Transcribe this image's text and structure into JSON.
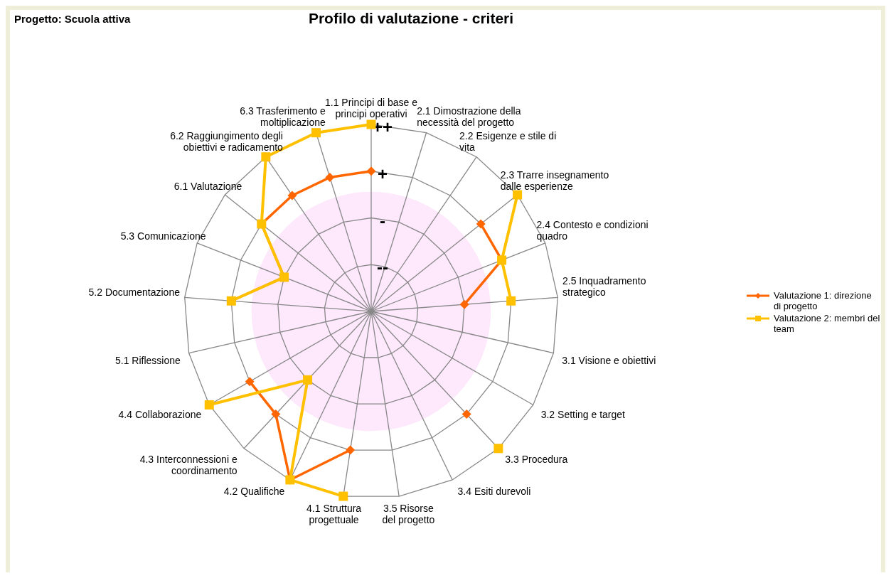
{
  "chart_data": {
    "type": "radar",
    "title": "Profilo di valutazione - criteri",
    "annotations": [
      "Progetto: Scuola attiva"
    ],
    "categories": [
      "1.1 Principi di base e principi operativi",
      "2.1 Dimostrazione della necessità del progetto",
      "2.2 Esigenze e stile di vita",
      "2.3 Trarre insegnamento dalle esperienze",
      "2.4 Contesto e condizioni quadro",
      "2.5 Inquadramento strategico",
      "3.1 Visione e obiettivi",
      "3.2 Setting e target",
      "3.3 Procedura",
      "3.4 Esiti durevoli",
      "3.5 Risorse del progetto",
      "4.1 Struttura progettuale",
      "4.2 Qualifiche",
      "4.3 Interconnessioni e coordinamento",
      "4.4 Collaborazione",
      "5.1 Riflessione",
      "5.2 Documentazione",
      "5.3 Comunicazione",
      "6.1 Valutazione",
      "6.2 Raggiungimento degli obiettivi e radicamento",
      "6.3 Trasferimento e moltiplicazione"
    ],
    "series": [
      {
        "name": "Valutazione 1: direzione di progetto",
        "color": "#ff6600",
        "marker": "diamond",
        "values": [
          3,
          null,
          null,
          3,
          3,
          2,
          null,
          null,
          3,
          null,
          null,
          3,
          4,
          3,
          3,
          null,
          3,
          2,
          3,
          3,
          3
        ]
      },
      {
        "name": "Valutazione 2: membri del team",
        "color": "#ffc000",
        "marker": "square",
        "values": [
          4,
          null,
          null,
          4,
          3,
          3,
          null,
          null,
          4,
          null,
          null,
          4,
          4,
          2,
          4,
          null,
          3,
          2,
          3,
          4,
          4
        ]
      }
    ],
    "ylim": [
      0,
      4
    ],
    "yticks": [
      {
        "value": 1,
        "label": "--"
      },
      {
        "value": 2,
        "label": "-"
      },
      {
        "value": 3,
        "label": "+"
      },
      {
        "value": 4,
        "label": "++"
      }
    ],
    "grid": true,
    "legend": "right"
  }
}
